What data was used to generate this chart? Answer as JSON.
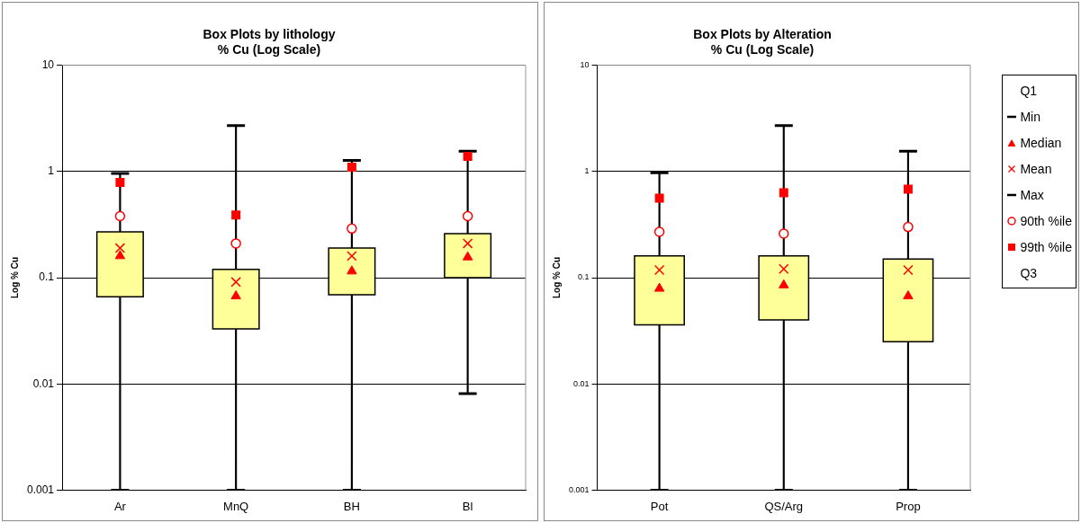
{
  "chart_data": [
    {
      "type": "box",
      "title": "Box Plots by lithology",
      "subtitle": "% Cu (Log Scale)",
      "ylabel": "Log % Cu",
      "categories": [
        "Ar",
        "MnQ",
        "BH",
        "Bl"
      ],
      "color": "#ffff99",
      "log": true,
      "ylim": [
        0.001,
        10
      ],
      "yticks": [
        0.001,
        0.01,
        0.1,
        1,
        10
      ],
      "grid": "y",
      "legend": false,
      "boxes": [
        {
          "low": 0.001,
          "q1": 0.066,
          "median": 0.16,
          "q3": 0.27,
          "high": 0.96,
          "mean": 0.19
        },
        {
          "low": 0.001,
          "q1": 0.033,
          "median": 0.067,
          "q3": 0.12,
          "high": 2.7,
          "mean": 0.091
        },
        {
          "low": 0.001,
          "q1": 0.069,
          "median": 0.115,
          "q3": 0.19,
          "high": 1.27,
          "mean": 0.16
        },
        {
          "low": 0.0081,
          "q1": 0.1,
          "median": 0.156,
          "q3": 0.26,
          "high": 1.55,
          "mean": 0.21
        }
      ],
      "series": [
        {
          "type": "scatter",
          "color": "#ff0000",
          "marker": "circle",
          "x": [
            "Ar",
            "MnQ",
            "BH",
            "Bl"
          ],
          "values": [
            0.38,
            0.21,
            0.29,
            0.38
          ]
        },
        {
          "type": "scatter",
          "color": "#ff0000",
          "marker": "square",
          "x": [
            "Ar",
            "MnQ",
            "BH",
            "Bl"
          ],
          "values": [
            0.79,
            0.39,
            1.1,
            1.39
          ]
        }
      ]
    },
    {
      "type": "box",
      "title": "Box Plots by Alteration",
      "subtitle": "% Cu (Log Scale)",
      "ylabel": "Log % Cu",
      "categories": [
        "Pot",
        "QS/Arg",
        "Prop"
      ],
      "color": "#ffff99",
      "log": true,
      "ylim": [
        0.001,
        10
      ],
      "yticks": [
        0.001,
        0.01,
        0.1,
        1,
        10
      ],
      "grid": "y",
      "legend": "right",
      "annotations": [
        "Q1",
        "Min",
        "Median",
        "Mean",
        "Max",
        "Q3"
      ],
      "boxes": [
        {
          "low": 0.001,
          "q1": 0.036,
          "median": 0.079,
          "q3": 0.16,
          "high": 0.97,
          "mean": 0.118
        },
        {
          "low": 0.001,
          "q1": 0.04,
          "median": 0.085,
          "q3": 0.16,
          "high": 2.7,
          "mean": 0.121
        },
        {
          "low": 0.001,
          "q1": 0.025,
          "median": 0.067,
          "q3": 0.15,
          "high": 1.55,
          "mean": 0.118
        }
      ],
      "series": [
        {
          "type": "scatter",
          "name": "90th %ile",
          "color": "#ff0000",
          "marker": "circle",
          "x": [
            "Pot",
            "QS/Arg",
            "Prop"
          ],
          "values": [
            0.27,
            0.26,
            0.3
          ]
        },
        {
          "type": "scatter",
          "name": "99th %ile",
          "color": "#ff0000",
          "marker": "square",
          "x": [
            "Pot",
            "QS/Arg",
            "Prop"
          ],
          "values": [
            0.56,
            0.63,
            0.68
          ]
        }
      ]
    }
  ]
}
